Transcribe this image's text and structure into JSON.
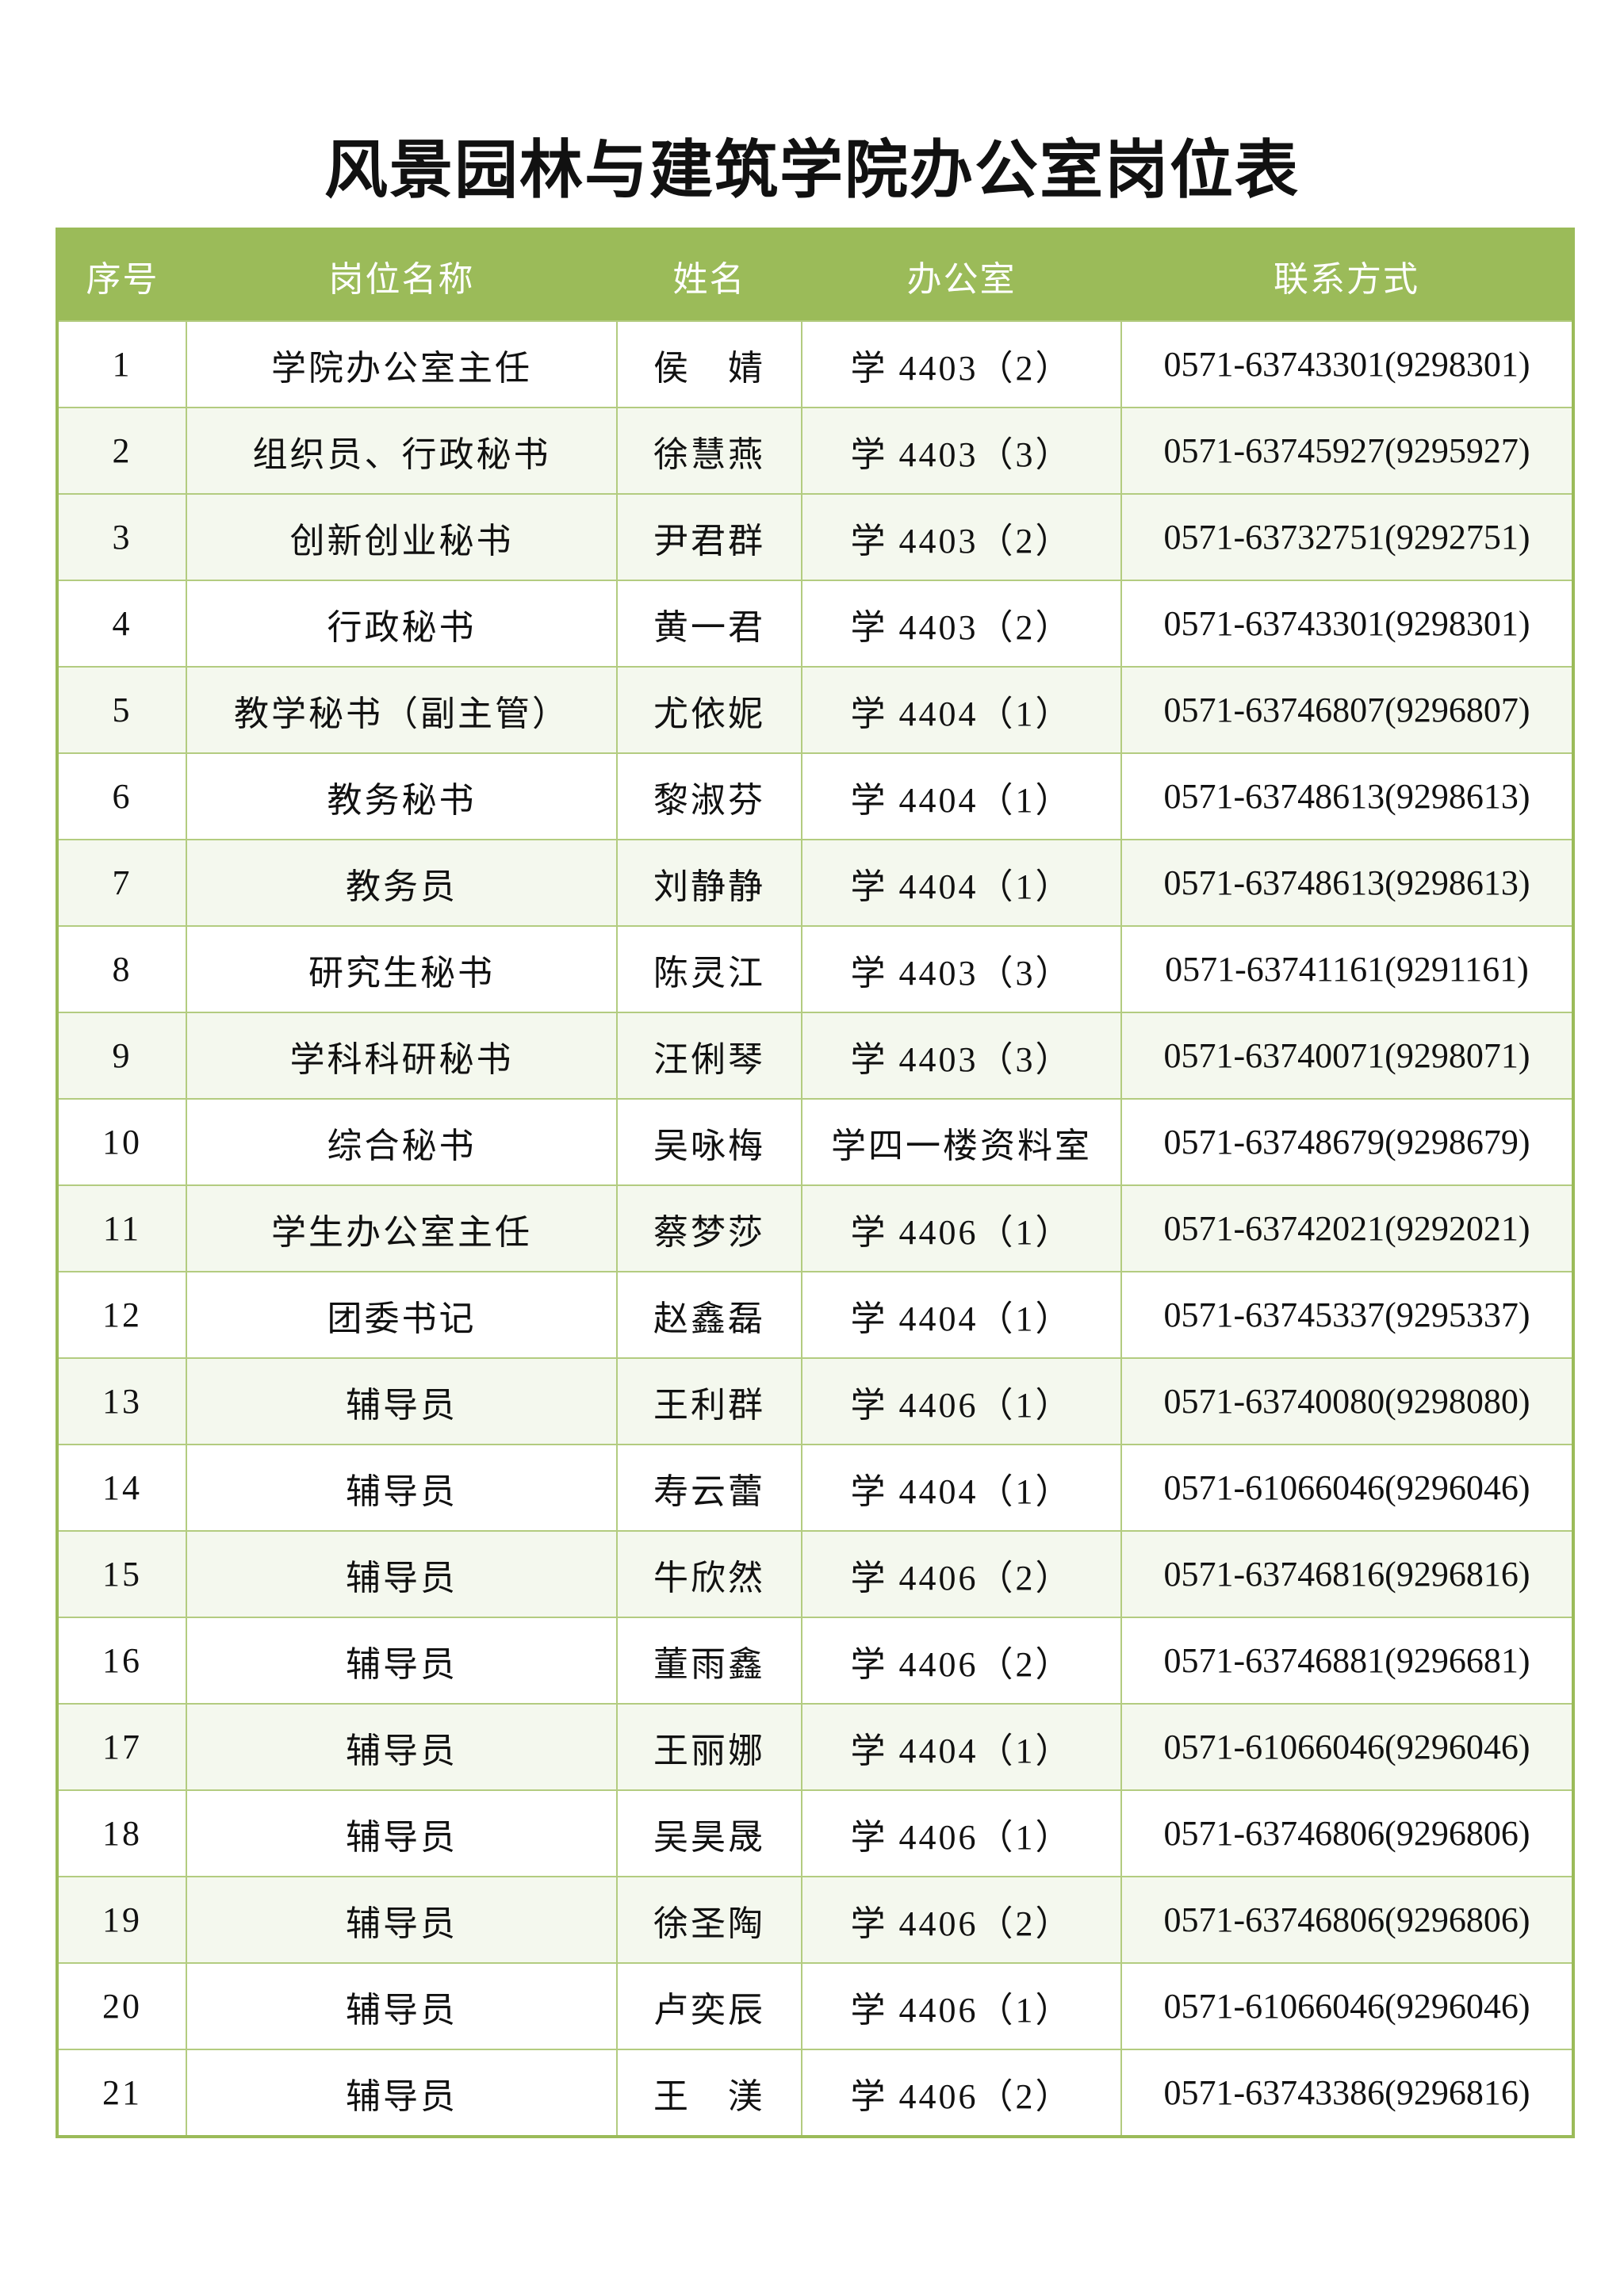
{
  "title": "风景园林与建筑学院办公室岗位表",
  "accent_color": "#9bbb59",
  "headers": [
    "序号",
    "岗位名称",
    "姓名",
    "办公室",
    "联系方式"
  ],
  "rows": [
    {
      "no": "1",
      "position": "学院办公室主任",
      "name": "侯　婧",
      "office": "学 4403（2）",
      "phone": "0571-63743301(9298301)",
      "shaded": false
    },
    {
      "no": "2",
      "position": "组织员、行政秘书",
      "name": "徐慧燕",
      "office": "学 4403（3）",
      "phone": "0571-63745927(9295927)",
      "shaded": true
    },
    {
      "no": "3",
      "position": "创新创业秘书",
      "name": "尹君群",
      "office": "学 4403（2）",
      "phone": "0571-63732751(9292751)",
      "shaded": true
    },
    {
      "no": "4",
      "position": "行政秘书",
      "name": "黄一君",
      "office": "学 4403（2）",
      "phone": "0571-63743301(9298301)",
      "shaded": false
    },
    {
      "no": "5",
      "position": "教学秘书（副主管）",
      "name": "尤依妮",
      "office": "学 4404（1）",
      "phone": "0571-63746807(9296807)",
      "shaded": true
    },
    {
      "no": "6",
      "position": "教务秘书",
      "name": "黎淑芬",
      "office": "学 4404（1）",
      "phone": "0571-63748613(9298613)",
      "shaded": false
    },
    {
      "no": "7",
      "position": "教务员",
      "name": "刘静静",
      "office": "学 4404（1）",
      "phone": "0571-63748613(9298613)",
      "shaded": true
    },
    {
      "no": "8",
      "position": "研究生秘书",
      "name": "陈灵江",
      "office": "学 4403（3）",
      "phone": "0571-63741161(9291161)",
      "shaded": false
    },
    {
      "no": "9",
      "position": "学科科研秘书",
      "name": "汪俐琴",
      "office": "学 4403（3）",
      "phone": "0571-63740071(9298071)",
      "shaded": true
    },
    {
      "no": "10",
      "position": "综合秘书",
      "name": "吴咏梅",
      "office": "学四一楼资料室",
      "phone": "0571-63748679(9298679)",
      "shaded": false
    },
    {
      "no": "11",
      "position": "学生办公室主任",
      "name": "蔡梦莎",
      "office": "学 4406（1）",
      "phone": "0571-63742021(9292021)",
      "shaded": true
    },
    {
      "no": "12",
      "position": "团委书记",
      "name": "赵鑫磊",
      "office": "学 4404（1）",
      "phone": "0571-63745337(9295337)",
      "shaded": false
    },
    {
      "no": "13",
      "position": "辅导员",
      "name": "王利群",
      "office": "学 4406（1）",
      "phone": "0571-63740080(9298080)",
      "shaded": true
    },
    {
      "no": "14",
      "position": "辅导员",
      "name": "寿云蕾",
      "office": "学 4404（1）",
      "phone": "0571-61066046(9296046)",
      "shaded": false
    },
    {
      "no": "15",
      "position": "辅导员",
      "name": "牛欣然",
      "office": "学 4406（2）",
      "phone": "0571-63746816(9296816)",
      "shaded": true
    },
    {
      "no": "16",
      "position": "辅导员",
      "name": "董雨鑫",
      "office": "学 4406（2）",
      "phone": "0571-63746881(9296681)",
      "shaded": false
    },
    {
      "no": "17",
      "position": "辅导员",
      "name": "王丽娜",
      "office": "学 4404（1）",
      "phone": "0571-61066046(9296046)",
      "shaded": true
    },
    {
      "no": "18",
      "position": "辅导员",
      "name": "吴昊晟",
      "office": "学 4406（1）",
      "phone": "0571-63746806(9296806)",
      "shaded": false
    },
    {
      "no": "19",
      "position": "辅导员",
      "name": "徐圣陶",
      "office": "学 4406（2）",
      "phone": "0571-63746806(9296806)",
      "shaded": true
    },
    {
      "no": "20",
      "position": "辅导员",
      "name": "卢奕辰",
      "office": "学 4406（1）",
      "phone": "0571-61066046(9296046)",
      "shaded": false
    },
    {
      "no": "21",
      "position": "辅导员",
      "name": "王　渼",
      "office": "学 4406（2）",
      "phone": "0571-63743386(9296816)",
      "shaded": false
    }
  ]
}
